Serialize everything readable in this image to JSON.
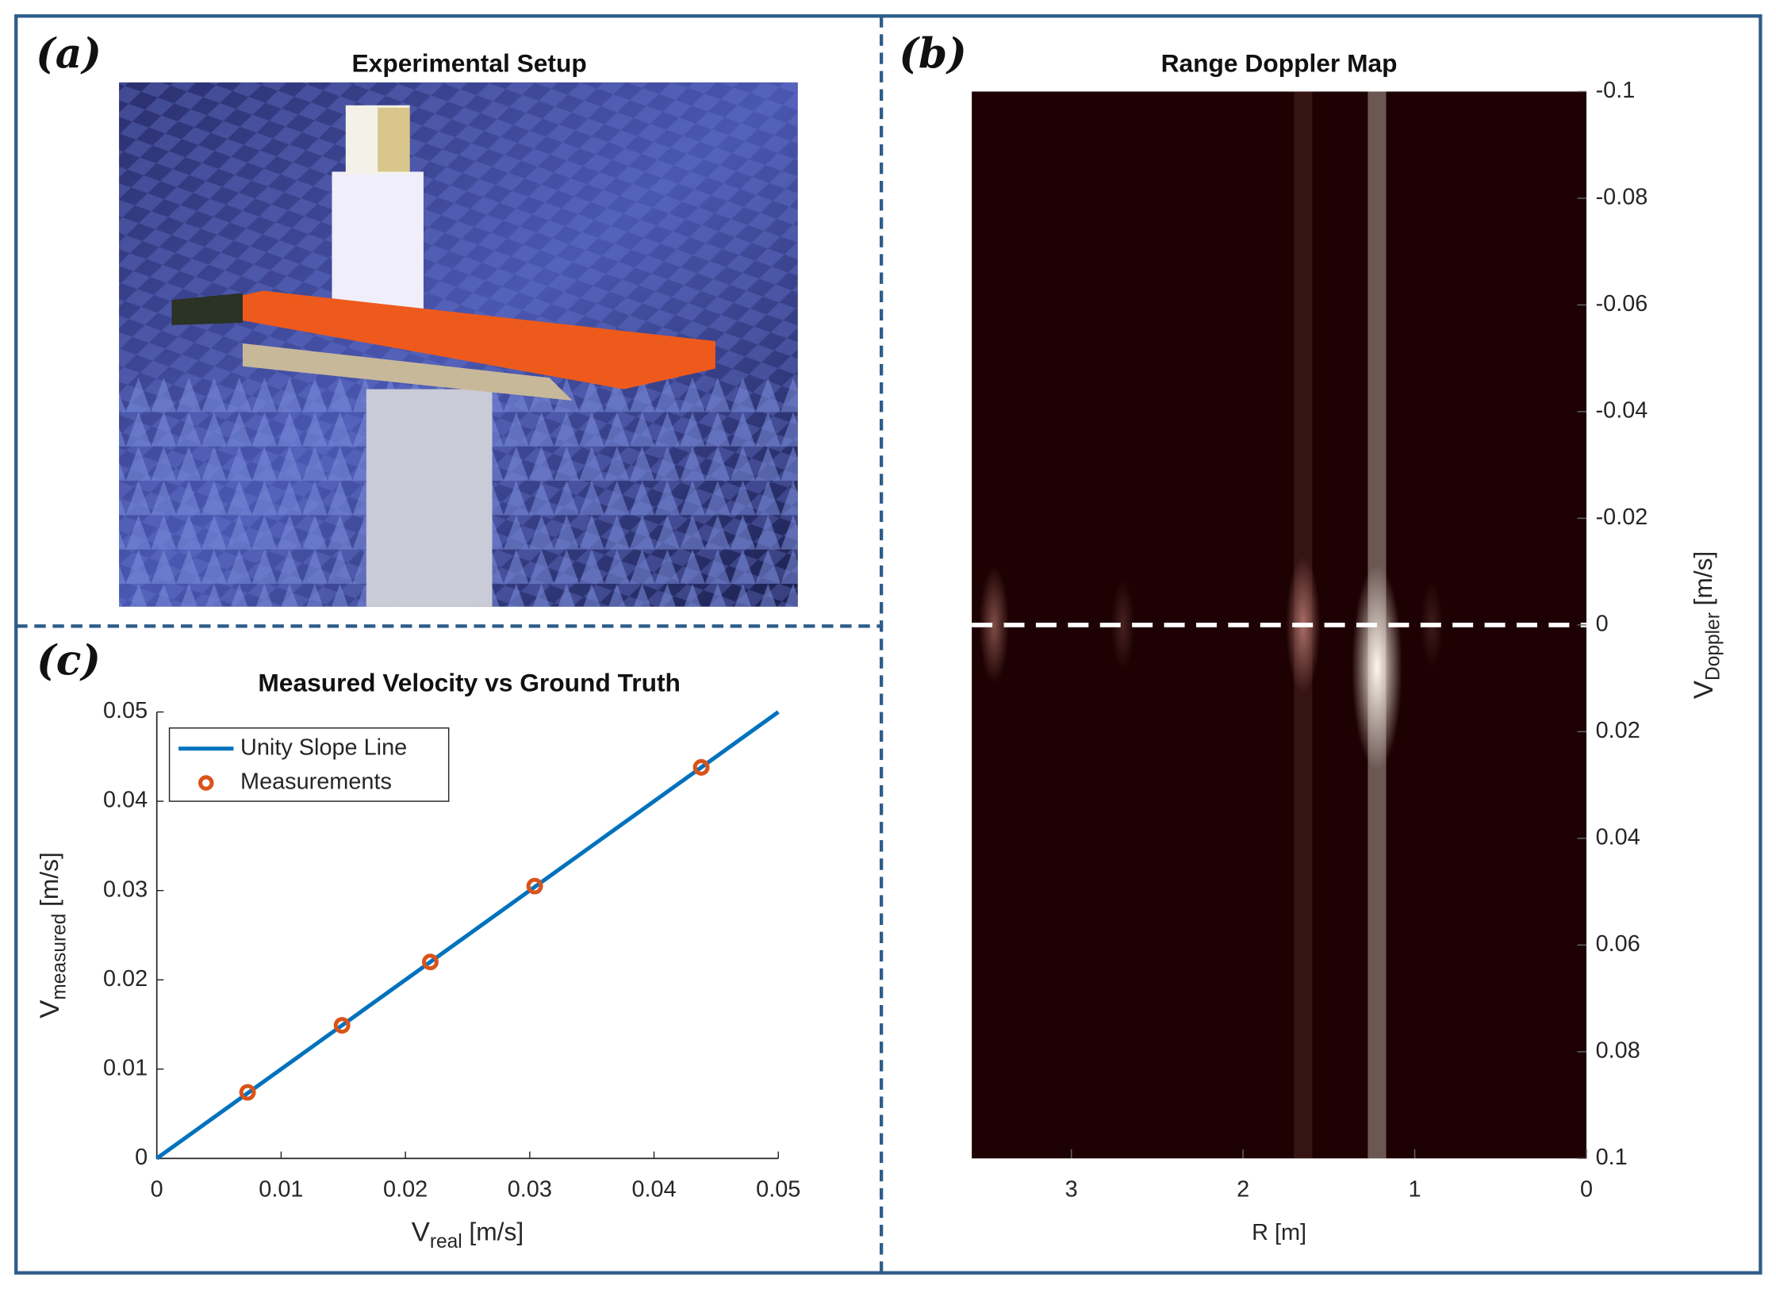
{
  "panel_a": {
    "label": "(a)",
    "title": "Experimental Setup"
  },
  "chart_data": [
    {
      "type": "heatmap",
      "label": "(b)",
      "title": "Range Doppler Map",
      "x": [
        3.45,
        2.7,
        1.65,
        1.22,
        0.9
      ],
      "y": [
        0.0,
        0.0,
        0.0,
        0.008,
        0.0
      ],
      "values": [
        0.35,
        0.15,
        0.5,
        1.0,
        0.12
      ],
      "xlim": [
        3.58,
        0
      ],
      "xticks": [
        3,
        2,
        1,
        0
      ],
      "ylim": [
        -0.1,
        0.1
      ],
      "yticks": [
        -0.1,
        -0.08,
        -0.06,
        -0.04,
        -0.02,
        0,
        0.02,
        0.04,
        0.06,
        0.08,
        0.1
      ],
      "y_reversed": true,
      "xlabel": "R [m]",
      "ylabel": {
        "main": "V",
        "sub": "Doppler",
        "unit": "[m/s]"
      },
      "hline": 0,
      "hline_color": "#ffffff",
      "colormap": [
        "#1e0203",
        "#a86e66",
        "#fff6ea"
      ]
    },
    {
      "type": "scatter",
      "label": "(c)",
      "title": "Measured Velocity vs Ground Truth",
      "xlim": [
        0,
        0.05
      ],
      "ylim": [
        0,
        0.05
      ],
      "xticks": [
        0,
        0.01,
        0.02,
        0.03,
        0.04,
        0.05
      ],
      "yticks": [
        0,
        0.01,
        0.02,
        0.03,
        0.04,
        0.05
      ],
      "xlabel": {
        "main": "V",
        "sub": "real",
        "unit": "[m/s]"
      },
      "ylabel": {
        "main": "V",
        "sub": "measured",
        "unit": "[m/s]"
      },
      "legend": "upper left",
      "series": [
        {
          "name": "Unity Slope Line",
          "type": "line",
          "color": "#0072bd",
          "x": [
            0,
            0.05
          ],
          "values": [
            0,
            0.05
          ]
        },
        {
          "name": "Measurements",
          "type": "scatter",
          "color": "#d95319",
          "x": [
            0.0073,
            0.0149,
            0.022,
            0.0304,
            0.0438
          ],
          "values": [
            0.0074,
            0.0149,
            0.022,
            0.0305,
            0.0438
          ]
        }
      ]
    }
  ]
}
